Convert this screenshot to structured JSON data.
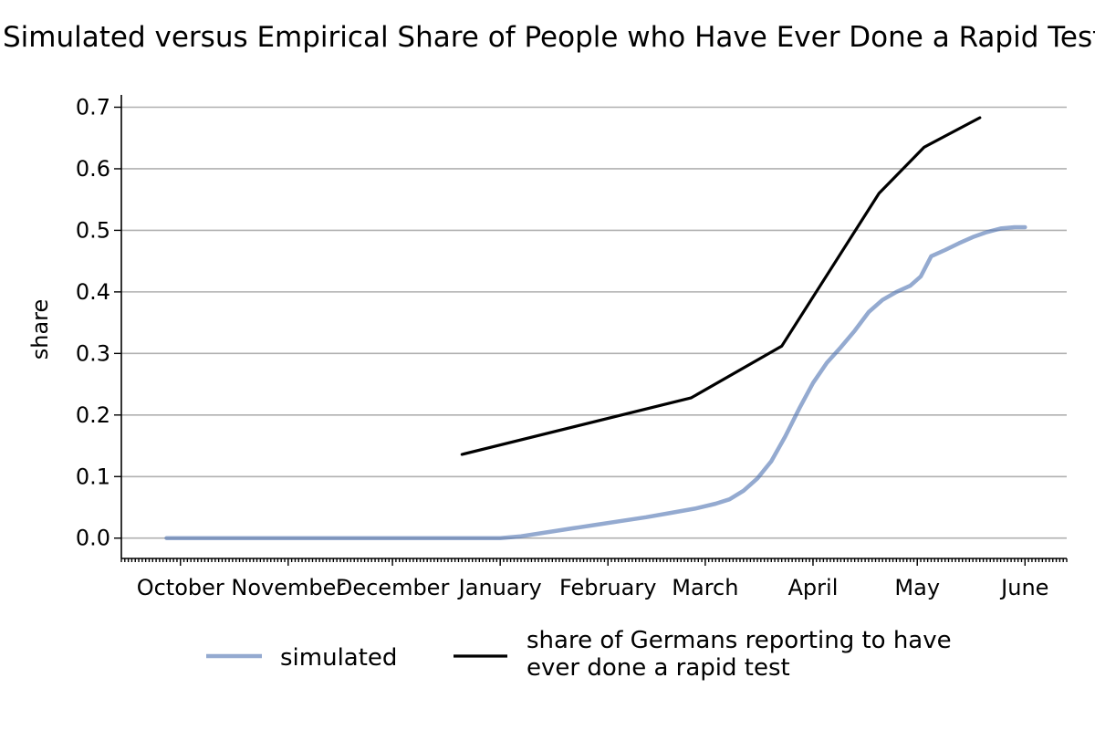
{
  "chart_data": {
    "type": "line",
    "title": "Simulated versus Empirical Share of People who Have Ever Done a Rapid Test",
    "xlabel": "",
    "ylabel": "share",
    "xlim": [
      "2020-09-14",
      "2021-06-13"
    ],
    "ylim": [
      -0.033,
      0.72
    ],
    "yticks": [
      0.0,
      0.1,
      0.2,
      0.3,
      0.4,
      0.5,
      0.6,
      0.7
    ],
    "ytick_labels": [
      "0.0",
      "0.1",
      "0.2",
      "0.3",
      "0.4",
      "0.5",
      "0.6",
      "0.7"
    ],
    "xticks": [
      {
        "label": "October",
        "date": "2020-10-01"
      },
      {
        "label": "November",
        "date": "2020-11-01"
      },
      {
        "label": "December",
        "date": "2020-12-01"
      },
      {
        "label": "January",
        "date": "2021-01-01"
      },
      {
        "label": "February",
        "date": "2021-02-01"
      },
      {
        "label": "March",
        "date": "2021-03-01"
      },
      {
        "label": "April",
        "date": "2021-04-01"
      },
      {
        "label": "May",
        "date": "2021-05-01"
      },
      {
        "label": "June",
        "date": "2021-06-01"
      }
    ],
    "grid": "horizontal",
    "legend_position": "bottom",
    "series": [
      {
        "name": "simulated",
        "color": "#4c72b0",
        "x": [
          "2020-09-27",
          "2020-12-01",
          "2021-01-01",
          "2021-01-07",
          "2021-01-15",
          "2021-01-22",
          "2021-01-29",
          "2021-02-05",
          "2021-02-12",
          "2021-02-19",
          "2021-02-26",
          "2021-03-04",
          "2021-03-08",
          "2021-03-12",
          "2021-03-16",
          "2021-03-20",
          "2021-03-24",
          "2021-03-28",
          "2021-04-01",
          "2021-04-05",
          "2021-04-09",
          "2021-04-13",
          "2021-04-17",
          "2021-04-21",
          "2021-04-25",
          "2021-04-29",
          "2021-05-02",
          "2021-05-05",
          "2021-05-09",
          "2021-05-13",
          "2021-05-17",
          "2021-05-21",
          "2021-05-25",
          "2021-05-29",
          "2021-06-01"
        ],
        "y": [
          0.0,
          0.0,
          0.0,
          0.003,
          0.01,
          0.016,
          0.022,
          0.028,
          0.034,
          0.041,
          0.048,
          0.056,
          0.063,
          0.077,
          0.097,
          0.125,
          0.165,
          0.21,
          0.252,
          0.285,
          0.31,
          0.337,
          0.367,
          0.387,
          0.4,
          0.41,
          0.425,
          0.458,
          0.468,
          0.479,
          0.489,
          0.497,
          0.503,
          0.505,
          0.505
        ]
      },
      {
        "name": "share of Germans reporting to have ever done a rapid test",
        "legend_lines": [
          "share of Germans reporting to have",
          "ever done a rapid test"
        ],
        "color": "#000000",
        "x": [
          "2020-12-21",
          "2021-02-25",
          "2021-03-23",
          "2021-04-20",
          "2021-05-03",
          "2021-05-19"
        ],
        "y": [
          0.136,
          0.228,
          0.312,
          0.56,
          0.635,
          0.683
        ]
      }
    ]
  }
}
